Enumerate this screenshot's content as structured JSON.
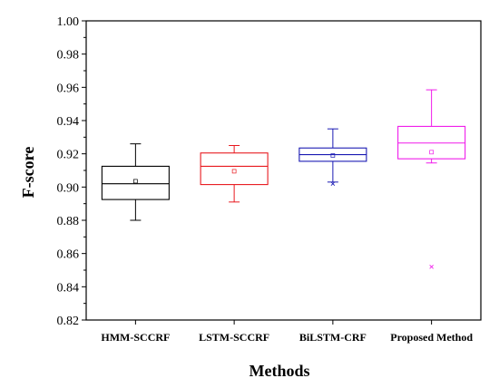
{
  "chart_data": {
    "type": "box",
    "xlabel": "Methods",
    "ylabel": "F-score",
    "ylim": [
      0.82,
      1.0
    ],
    "yticks": [
      "0.82",
      "0.84",
      "0.86",
      "0.88",
      "0.90",
      "0.92",
      "0.94",
      "0.96",
      "0.98",
      "1.00"
    ],
    "grid": false,
    "categories": [
      "HMM-SCCRF",
      "LSTM-SCCRF",
      "BiLSTM-CRF",
      "Proposed Method"
    ],
    "series": [
      {
        "category": "HMM-SCCRF",
        "color": "#000000",
        "whisker_low": 0.88,
        "q1": 0.8925,
        "median": 0.902,
        "q3": 0.9125,
        "whisker_high": 0.926,
        "mean": 0.9035,
        "outliers": []
      },
      {
        "category": "LSTM-SCCRF",
        "color": "#e8191f",
        "whisker_low": 0.891,
        "q1": 0.9015,
        "median": 0.9125,
        "q3": 0.9205,
        "whisker_high": 0.925,
        "mean": 0.9095,
        "outliers": []
      },
      {
        "category": "BiLSTM-CRF",
        "color": "#1a1ab3",
        "whisker_low": 0.903,
        "q1": 0.9155,
        "median": 0.9195,
        "q3": 0.9235,
        "whisker_high": 0.935,
        "mean": 0.919,
        "outliers": [
          0.902
        ]
      },
      {
        "category": "Proposed Method",
        "color": "#f01aea",
        "whisker_low": 0.9145,
        "q1": 0.917,
        "median": 0.9265,
        "q3": 0.9365,
        "whisker_high": 0.9585,
        "mean": 0.921,
        "outliers": [
          0.852
        ]
      }
    ]
  }
}
